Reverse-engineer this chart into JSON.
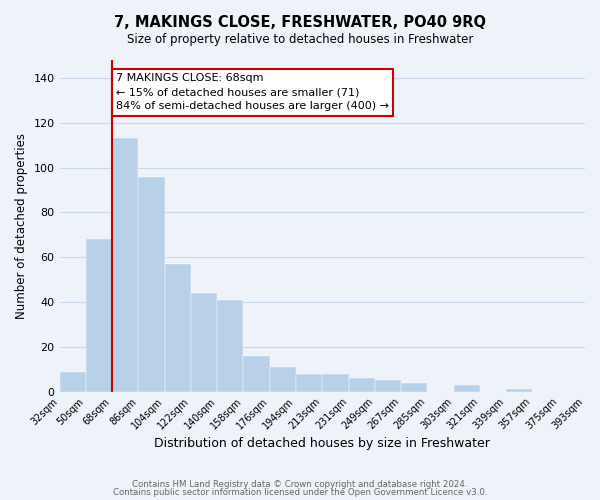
{
  "title": "7, MAKINGS CLOSE, FRESHWATER, PO40 9RQ",
  "subtitle": "Size of property relative to detached houses in Freshwater",
  "xlabel": "Distribution of detached houses by size in Freshwater",
  "ylabel": "Number of detached properties",
  "bar_values": [
    9,
    68,
    113,
    96,
    57,
    44,
    41,
    16,
    11,
    8,
    8,
    6,
    5,
    4,
    0,
    3,
    0,
    1,
    0,
    0
  ],
  "bar_labels": [
    "32sqm",
    "50sqm",
    "68sqm",
    "86sqm",
    "104sqm",
    "122sqm",
    "140sqm",
    "158sqm",
    "176sqm",
    "194sqm",
    "213sqm",
    "231sqm",
    "249sqm",
    "267sqm",
    "285sqm",
    "303sqm",
    "321sqm",
    "339sqm",
    "357sqm",
    "375sqm",
    "393sqm"
  ],
  "bar_color": "#b8d0e8",
  "bar_edge_color": "#b8d0e8",
  "vline_color": "#cc0000",
  "ylim": [
    0,
    148
  ],
  "yticks": [
    0,
    20,
    40,
    60,
    80,
    100,
    120,
    140
  ],
  "annotation_title": "7 MAKINGS CLOSE: 68sqm",
  "annotation_line1": "← 15% of detached houses are smaller (71)",
  "annotation_line2": "84% of semi-detached houses are larger (400) →",
  "annotation_box_color": "#ffffff",
  "annotation_box_edge": "#cc0000",
  "footer_line1": "Contains HM Land Registry data © Crown copyright and database right 2024.",
  "footer_line2": "Contains public sector information licensed under the Open Government Licence v3.0.",
  "grid_color": "#c8d8ea",
  "background_color": "#eef3fa"
}
